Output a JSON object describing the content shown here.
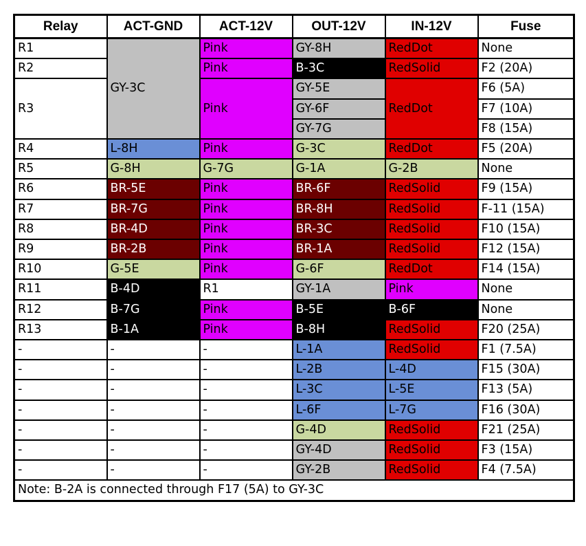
{
  "colors": {
    "W": "#ffffff",
    "GY": "#c0c0c0",
    "PK": "#e000ff",
    "RD": "#e00000",
    "BK": "#000000",
    "BL": "#6a8fd6",
    "GN": "#c9d8a0",
    "BR": "#6b0000"
  },
  "text_colors": {
    "W": "#000000",
    "GY": "#000000",
    "PK": "#000000",
    "RD": "#000000",
    "BK": "#ffffff",
    "BL": "#000000",
    "GN": "#000000",
    "BR": "#ffffff"
  },
  "table": {
    "headers": [
      "Relay",
      "ACT-GND",
      "ACT-12V",
      "OUT-12V",
      "IN-12V",
      "Fuse"
    ],
    "rows": [
      [
        {
          "t": "R1",
          "c": "W"
        },
        {
          "t": "GY-3C",
          "c": "GY",
          "rs": 5
        },
        {
          "t": "Pink",
          "c": "PK"
        },
        {
          "t": "GY-8H",
          "c": "GY"
        },
        {
          "t": "RedDot",
          "c": "RD"
        },
        {
          "t": "None",
          "c": "W"
        }
      ],
      [
        {
          "t": "R2",
          "c": "W"
        },
        {
          "t": "Pink",
          "c": "PK"
        },
        {
          "t": "B-3C",
          "c": "BK"
        },
        {
          "t": "RedSolid",
          "c": "RD"
        },
        {
          "t": "F2 (20A)",
          "c": "W"
        }
      ],
      [
        {
          "t": "R3",
          "c": "W",
          "rs": 3
        },
        {
          "t": "Pink",
          "c": "PK",
          "rs": 3
        },
        {
          "t": "GY-5E",
          "c": "GY"
        },
        {
          "t": "RedDot",
          "c": "RD",
          "rs": 3
        },
        {
          "t": "F6 (5A)",
          "c": "W"
        }
      ],
      [
        {
          "t": "GY-6F",
          "c": "GY"
        },
        {
          "t": "F7 (10A)",
          "c": "W"
        }
      ],
      [
        {
          "t": "GY-7G",
          "c": "GY"
        },
        {
          "t": "F8 (15A)",
          "c": "W"
        }
      ],
      [
        {
          "t": "R4",
          "c": "W"
        },
        {
          "t": "L-8H",
          "c": "BL"
        },
        {
          "t": "Pink",
          "c": "PK"
        },
        {
          "t": "G-3C",
          "c": "GN"
        },
        {
          "t": "RedDot",
          "c": "RD"
        },
        {
          "t": "F5 (20A)",
          "c": "W"
        }
      ],
      [
        {
          "t": "R5",
          "c": "W"
        },
        {
          "t": "G-8H",
          "c": "GN"
        },
        {
          "t": "G-7G",
          "c": "GN"
        },
        {
          "t": "G-1A",
          "c": "GN"
        },
        {
          "t": "G-2B",
          "c": "GN"
        },
        {
          "t": "None",
          "c": "W"
        }
      ],
      [
        {
          "t": "R6",
          "c": "W"
        },
        {
          "t": "BR-5E",
          "c": "BR"
        },
        {
          "t": "Pink",
          "c": "PK"
        },
        {
          "t": "BR-6F",
          "c": "BR"
        },
        {
          "t": "RedSolid",
          "c": "RD"
        },
        {
          "t": "F9 (15A)",
          "c": "W"
        }
      ],
      [
        {
          "t": "R7",
          "c": "W"
        },
        {
          "t": "BR-7G",
          "c": "BR"
        },
        {
          "t": "Pink",
          "c": "PK"
        },
        {
          "t": "BR-8H",
          "c": "BR"
        },
        {
          "t": "RedSolid",
          "c": "RD"
        },
        {
          "t": "F-11 (15A)",
          "c": "W"
        }
      ],
      [
        {
          "t": "R8",
          "c": "W"
        },
        {
          "t": "BR-4D",
          "c": "BR"
        },
        {
          "t": "Pink",
          "c": "PK"
        },
        {
          "t": "BR-3C",
          "c": "BR"
        },
        {
          "t": "RedSolid",
          "c": "RD"
        },
        {
          "t": "F10 (15A)",
          "c": "W"
        }
      ],
      [
        {
          "t": "R9",
          "c": "W"
        },
        {
          "t": "BR-2B",
          "c": "BR"
        },
        {
          "t": "Pink",
          "c": "PK"
        },
        {
          "t": "BR-1A",
          "c": "BR"
        },
        {
          "t": "RedSolid",
          "c": "RD"
        },
        {
          "t": "F12 (15A)",
          "c": "W"
        }
      ],
      [
        {
          "t": "R10",
          "c": "W"
        },
        {
          "t": "G-5E",
          "c": "GN"
        },
        {
          "t": "Pink",
          "c": "PK"
        },
        {
          "t": "G-6F",
          "c": "GN"
        },
        {
          "t": "RedDot",
          "c": "RD"
        },
        {
          "t": "F14 (15A)",
          "c": "W"
        }
      ],
      [
        {
          "t": "R11",
          "c": "W"
        },
        {
          "t": "B-4D",
          "c": "BK"
        },
        {
          "t": "R1",
          "c": "W"
        },
        {
          "t": "GY-1A",
          "c": "GY"
        },
        {
          "t": "Pink",
          "c": "PK"
        },
        {
          "t": "None",
          "c": "W"
        }
      ],
      [
        {
          "t": "R12",
          "c": "W"
        },
        {
          "t": "B-7G",
          "c": "BK"
        },
        {
          "t": "Pink",
          "c": "PK"
        },
        {
          "t": "B-5E",
          "c": "BK"
        },
        {
          "t": "B-6F",
          "c": "BK"
        },
        {
          "t": "None",
          "c": "W"
        }
      ],
      [
        {
          "t": "R13",
          "c": "W"
        },
        {
          "t": "B-1A",
          "c": "BK"
        },
        {
          "t": "Pink",
          "c": "PK"
        },
        {
          "t": "B-8H",
          "c": "BK"
        },
        {
          "t": "RedSolid",
          "c": "RD"
        },
        {
          "t": "F20 (25A)",
          "c": "W"
        }
      ],
      [
        {
          "t": "-",
          "c": "W"
        },
        {
          "t": "-",
          "c": "W"
        },
        {
          "t": "-",
          "c": "W"
        },
        {
          "t": "L-1A",
          "c": "BL"
        },
        {
          "t": "RedSolid",
          "c": "RD"
        },
        {
          "t": "F1 (7.5A)",
          "c": "W"
        }
      ],
      [
        {
          "t": "-",
          "c": "W"
        },
        {
          "t": "-",
          "c": "W"
        },
        {
          "t": "-",
          "c": "W"
        },
        {
          "t": "L-2B",
          "c": "BL"
        },
        {
          "t": "L-4D",
          "c": "BL"
        },
        {
          "t": "F15 (30A)",
          "c": "W"
        }
      ],
      [
        {
          "t": "-",
          "c": "W"
        },
        {
          "t": "-",
          "c": "W"
        },
        {
          "t": "-",
          "c": "W"
        },
        {
          "t": "L-3C",
          "c": "BL"
        },
        {
          "t": "L-5E",
          "c": "BL"
        },
        {
          "t": "F13 (5A)",
          "c": "W"
        }
      ],
      [
        {
          "t": "-",
          "c": "W"
        },
        {
          "t": "-",
          "c": "W"
        },
        {
          "t": "-",
          "c": "W"
        },
        {
          "t": "L-6F",
          "c": "BL"
        },
        {
          "t": "L-7G",
          "c": "BL"
        },
        {
          "t": "F16 (30A)",
          "c": "W"
        }
      ],
      [
        {
          "t": "-",
          "c": "W"
        },
        {
          "t": "-",
          "c": "W"
        },
        {
          "t": "-",
          "c": "W"
        },
        {
          "t": "G-4D",
          "c": "GN"
        },
        {
          "t": "RedSolid",
          "c": "RD"
        },
        {
          "t": "F21 (25A)",
          "c": "W"
        }
      ],
      [
        {
          "t": "-",
          "c": "W"
        },
        {
          "t": "-",
          "c": "W"
        },
        {
          "t": "-",
          "c": "W"
        },
        {
          "t": "GY-4D",
          "c": "GY"
        },
        {
          "t": "RedSolid",
          "c": "RD"
        },
        {
          "t": "F3 (15A)",
          "c": "W"
        }
      ],
      [
        {
          "t": "-",
          "c": "W"
        },
        {
          "t": "-",
          "c": "W"
        },
        {
          "t": "-",
          "c": "W"
        },
        {
          "t": "GY-2B",
          "c": "GY"
        },
        {
          "t": "RedSolid",
          "c": "RD"
        },
        {
          "t": "F4 (7.5A)",
          "c": "W"
        }
      ]
    ],
    "note": "Note: B-2A is connected through F17 (5A) to GY-3C"
  }
}
